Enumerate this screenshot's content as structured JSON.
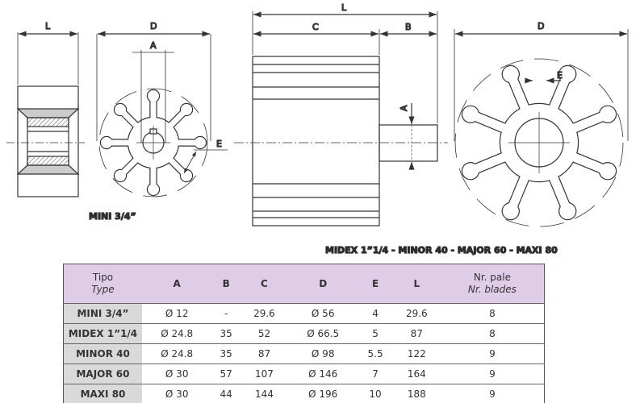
{
  "drawing": {
    "mini_caption": "MINI 3/4”",
    "big_caption": "MIDEX 1”1/4 - MINOR 40 - MAJOR 60 - MAXI 80",
    "dims": {
      "L": "L",
      "D": "D",
      "A": "A",
      "E": "E",
      "C": "C",
      "B": "B"
    }
  },
  "table": {
    "header": {
      "tipo": "Tipo",
      "type": "Type",
      "cols": [
        "A",
        "B",
        "C",
        "D",
        "E",
        "L"
      ],
      "pale": "Nr. pale",
      "blades": "Nr. blades"
    },
    "rows": [
      {
        "name": "MINI 3/4”",
        "A": "Ø 12",
        "B": "-",
        "C": "29.6",
        "D": "Ø 56",
        "E": "4",
        "L": "29.6",
        "N": "8"
      },
      {
        "name": "MIDEX 1”1/4",
        "A": "Ø 24.8",
        "B": "35",
        "C": "52",
        "D": "Ø 66.5",
        "E": "5",
        "L": "87",
        "N": "8"
      },
      {
        "name": "MINOR 40",
        "A": "Ø 24.8",
        "B": "35",
        "C": "87",
        "D": "Ø 98",
        "E": "5.5",
        "L": "122",
        "N": "9"
      },
      {
        "name": "MAJOR 60",
        "A": "Ø 30",
        "B": "57",
        "C": "107",
        "D": "Ø 146",
        "E": "7",
        "L": "164",
        "N": "9"
      },
      {
        "name": "MAXI 80",
        "A": "Ø 30",
        "B": "44",
        "C": "144",
        "D": "Ø 196",
        "E": "10",
        "L": "188",
        "N": "9"
      }
    ]
  }
}
